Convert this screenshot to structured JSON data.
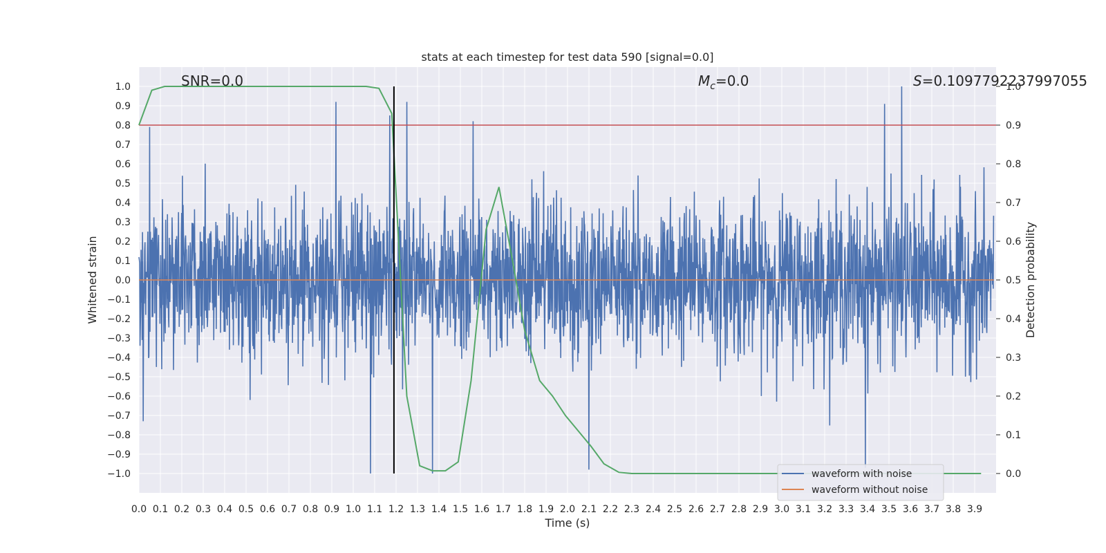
{
  "chart_data": {
    "type": "line",
    "title": "stats at each timestep for test data 590 [signal=0.0]",
    "xlabel": "Time (s)",
    "ylabel": "Whitened strain",
    "y2label": "Detection probability",
    "xlim": [
      0.0,
      4.0
    ],
    "ylim": [
      -1.1,
      1.1
    ],
    "y2lim": [
      -0.05,
      1.05
    ],
    "x_ticks": [
      "0.0",
      "0.1",
      "0.2",
      "0.3",
      "0.4",
      "0.5",
      "0.6",
      "0.7",
      "0.8",
      "0.9",
      "1.0",
      "1.1",
      "1.2",
      "1.3",
      "1.4",
      "1.5",
      "1.6",
      "1.7",
      "1.8",
      "1.9",
      "2.0",
      "2.1",
      "2.2",
      "2.3",
      "2.4",
      "2.5",
      "2.6",
      "2.7",
      "2.8",
      "2.9",
      "3.0",
      "3.1",
      "3.2",
      "3.3",
      "3.4",
      "3.5",
      "3.6",
      "3.7",
      "3.8",
      "3.9"
    ],
    "y_ticks": [
      "1.0",
      "0.9",
      "0.8",
      "0.7",
      "0.6",
      "0.5",
      "0.4",
      "0.3",
      "0.2",
      "0.1",
      "0.0",
      "−0.1",
      "−0.2",
      "−0.3",
      "−0.4",
      "−0.5",
      "−0.6",
      "−0.7",
      "−0.8",
      "−0.9",
      "−1.0"
    ],
    "y2_ticks": [
      "1.0",
      "0.9",
      "0.8",
      "0.7",
      "0.6",
      "0.5",
      "0.4",
      "0.3",
      "0.2",
      "0.1",
      "0.0"
    ],
    "grid": true,
    "legend_position": "lower-right",
    "annotations": {
      "snr": "SNR=0.0",
      "mc_symbol": "M",
      "mc_sub": "c",
      "mc_value": "=0.0",
      "s_symbol": "S",
      "s_value": "=0.1097792237997055"
    },
    "series": [
      {
        "name": "waveform with noise",
        "color": "#4c72b0",
        "axis": "left",
        "amplitude_envelope": 0.4,
        "notable_peaks": [
          {
            "x": 0.05,
            "y": 0.79
          },
          {
            "x": 0.92,
            "y": 0.92
          },
          {
            "x": 1.17,
            "y": 0.85
          },
          {
            "x": 1.25,
            "y": 0.92
          },
          {
            "x": 1.56,
            "y": 0.82
          },
          {
            "x": 3.48,
            "y": 0.91
          },
          {
            "x": 3.56,
            "y": 1.0
          },
          {
            "x": 1.08,
            "y": -1.0
          },
          {
            "x": 1.37,
            "y": -1.0
          },
          {
            "x": 2.1,
            "y": -0.98
          },
          {
            "x": 3.39,
            "y": -0.97
          },
          {
            "x": 0.02,
            "y": -0.73
          }
        ]
      },
      {
        "name": "waveform without noise",
        "color": "#dd8452",
        "axis": "left",
        "x": [
          0.0,
          3.99
        ],
        "y": [
          0.0,
          0.0
        ]
      },
      {
        "name": "",
        "color": "#55a868",
        "axis": "right",
        "x": [
          0.0,
          0.06,
          0.12,
          0.18,
          0.5,
          1.0,
          1.06,
          1.12,
          1.18,
          1.25,
          1.31,
          1.37,
          1.43,
          1.49,
          1.55,
          1.62,
          1.68,
          1.74,
          1.8,
          1.87,
          1.93,
          1.99,
          2.05,
          2.11,
          2.17,
          2.24,
          2.3,
          2.36,
          2.5,
          3.0,
          3.5,
          3.93
        ],
        "y": [
          0.9,
          0.99,
          1.0,
          1.0,
          1.0,
          1.0,
          1.0,
          0.995,
          0.93,
          0.2,
          0.02,
          0.007,
          0.007,
          0.03,
          0.24,
          0.63,
          0.74,
          0.56,
          0.37,
          0.24,
          0.2,
          0.15,
          0.11,
          0.07,
          0.025,
          0.003,
          0.0,
          0.0,
          0.0,
          0.0,
          0.0,
          0.0
        ]
      }
    ],
    "threshold_line": {
      "axis": "right",
      "value": 0.9,
      "color": "#c44e52"
    },
    "vertical_marker": {
      "x": 1.19,
      "color": "#000000"
    }
  }
}
